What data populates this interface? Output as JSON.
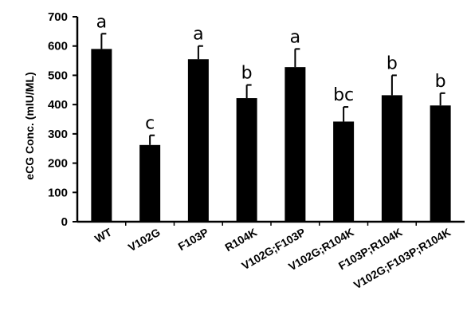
{
  "chart_data": {
    "type": "bar",
    "ylabel": "eCG Conc. (mIU/ML)",
    "ylim": [
      0,
      700
    ],
    "yticks": [
      0,
      100,
      200,
      300,
      400,
      500,
      600,
      700
    ],
    "categories": [
      "WT",
      "V102G",
      "F103P",
      "R104K",
      "V102G;F103P",
      "V102G;R104K",
      "F103P;R104K",
      "V102G;F103P;R104K"
    ],
    "values": [
      590,
      262,
      555,
      422,
      528,
      342,
      432,
      397
    ],
    "errors": [
      52,
      33,
      45,
      45,
      62,
      50,
      68,
      42
    ],
    "significance": [
      "a",
      "c",
      "a",
      "b",
      "a",
      "bc",
      "b",
      "b"
    ],
    "bar_color": "#000000"
  }
}
